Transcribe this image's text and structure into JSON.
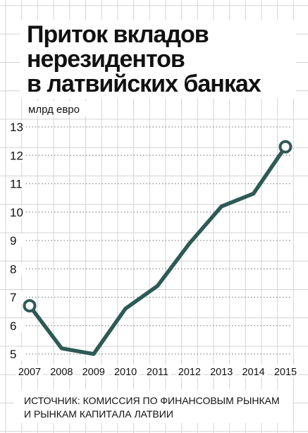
{
  "chart_data": {
    "type": "line",
    "title_lines": [
      "Приток вкладов",
      "нерезидентов",
      "в латвийских банках"
    ],
    "ylabel": "млрд евро",
    "x": [
      "2007",
      "2008",
      "2009",
      "2010",
      "2011",
      "2012",
      "2013",
      "2014",
      "2015"
    ],
    "series": [
      {
        "values": [
          6.7,
          5.2,
          5.0,
          6.6,
          7.4,
          8.9,
          10.2,
          10.65,
          12.3
        ],
        "color": "#2e5a55"
      }
    ],
    "ylim": [
      5,
      13
    ],
    "yticks": [
      5,
      6,
      7,
      8,
      9,
      10,
      11,
      12,
      13
    ],
    "grid": true,
    "end_markers": true,
    "source_lines": [
      "ИСТОЧНИК: КОМИССИЯ ПО ФИНАНСОВЫМ РЫНКАМ",
      "И РЫНКАМ КАПИТАЛА ЛАТВИИ"
    ]
  }
}
